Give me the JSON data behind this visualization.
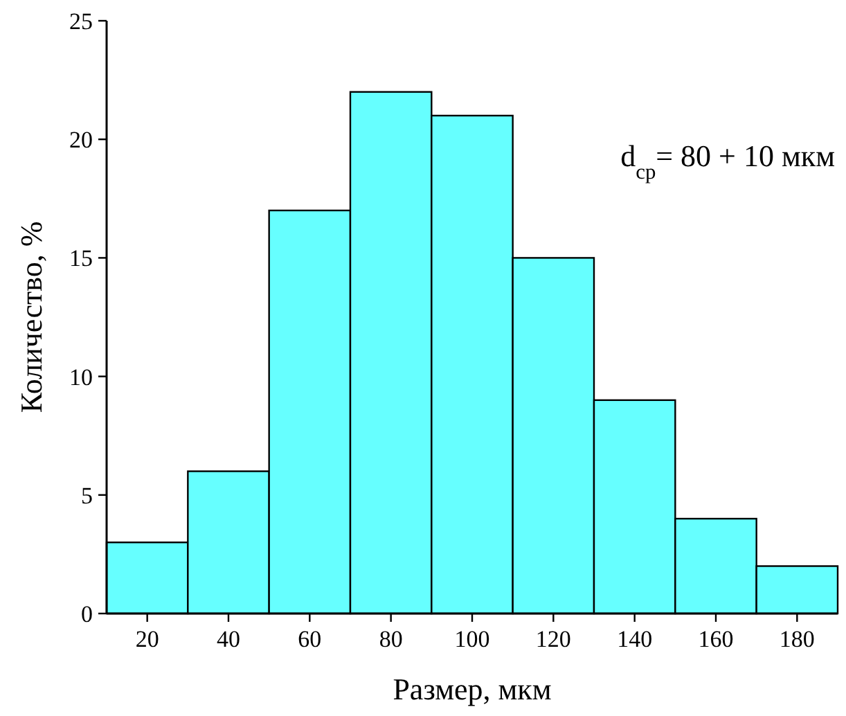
{
  "chart_data": {
    "type": "histogram",
    "xlabel": "Размер, мкм",
    "ylabel": "Количество, %",
    "bins": [
      10,
      30,
      50,
      70,
      90,
      110,
      130,
      150,
      170,
      190
    ],
    "values": [
      3,
      6,
      17,
      22,
      21,
      15,
      9,
      4,
      2
    ],
    "color": "#66ffff",
    "xlim": [
      10,
      190
    ],
    "xticks": [
      20,
      40,
      60,
      80,
      100,
      120,
      140,
      160,
      180
    ],
    "ylim": [
      0,
      25
    ],
    "yticks": [
      0,
      5,
      10,
      15,
      20,
      25
    ],
    "annotations": [
      "d$_{cp}$= 80 + 10 мкм"
    ]
  }
}
